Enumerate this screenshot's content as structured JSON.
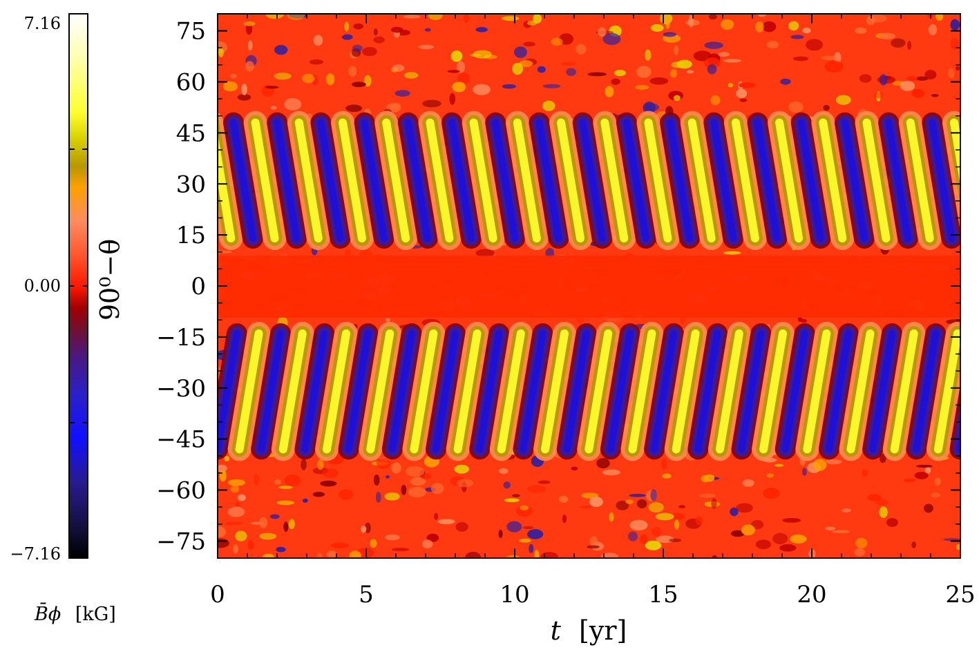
{
  "chart_data": {
    "type": "heatmap",
    "x": {
      "label_var": "t",
      "label_unit": "[yr]",
      "range": [
        0,
        25
      ],
      "ticks": [
        0,
        5,
        10,
        15,
        20,
        25
      ],
      "tick_labels": [
        "0",
        "5",
        "10",
        "15",
        "20",
        "25"
      ]
    },
    "y": {
      "label": "90⁰−θ",
      "range": [
        -80,
        80
      ],
      "ticks": [
        75,
        60,
        45,
        30,
        15,
        0,
        -15,
        -30,
        -45,
        -60,
        -75
      ],
      "tick_labels": [
        "75",
        "60",
        "45",
        "30",
        "15",
        "0",
        "−15",
        "−30",
        "−45",
        "−60",
        "−75"
      ]
    },
    "colorbar": {
      "label_var": "B̄ϕ",
      "label_unit": "[kG]",
      "range": [
        -7.16,
        7.16
      ],
      "tick_labels": [
        "7.16",
        "0.00",
        "−7.16"
      ],
      "colors": [
        "#000000",
        "#1a0a40",
        "#2a1a90",
        "#1010ff",
        "#2020e0",
        "#3a1aa0",
        "#5a1050",
        "#8b0000",
        "#c00000",
        "#ff1a00",
        "#ff5a30",
        "#ff8c60",
        "#ffa000",
        "#b89800",
        "#c8b400",
        "#ffff30",
        "#ffffa0",
        "#ffffff"
      ]
    },
    "pattern": {
      "description_note": "",
      "cycle_period_yr": 1.47,
      "north_band_deg": [
        12,
        50
      ],
      "south_band_deg": [
        -50,
        -12
      ],
      "equator_value": "near zero (red)"
    }
  }
}
